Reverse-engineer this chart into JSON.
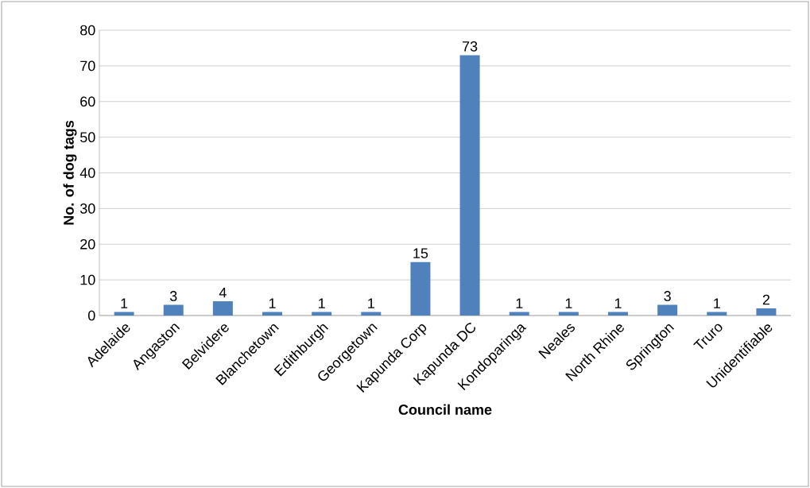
{
  "chart_data": {
    "type": "bar",
    "xlabel": "Council name",
    "ylabel": "No. of dog tags",
    "categories": [
      "Adelaide",
      "Angaston",
      "Belvidere",
      "Blanchetown",
      "Edithburgh",
      "Georgetown",
      "Kapunda Corp",
      "Kapunda DC",
      "Kondoparinga",
      "Neales",
      "North Rhine",
      "Springton",
      "Truro",
      "Unidentifiable"
    ],
    "values": [
      1,
      3,
      4,
      1,
      1,
      1,
      15,
      73,
      1,
      1,
      1,
      3,
      1,
      2
    ],
    "color": "#4f81bd",
    "ylim": [
      0,
      80
    ],
    "yticks": [
      0,
      10,
      20,
      30,
      40,
      50,
      60,
      70,
      80
    ],
    "grid": "y",
    "data_labels": true
  }
}
